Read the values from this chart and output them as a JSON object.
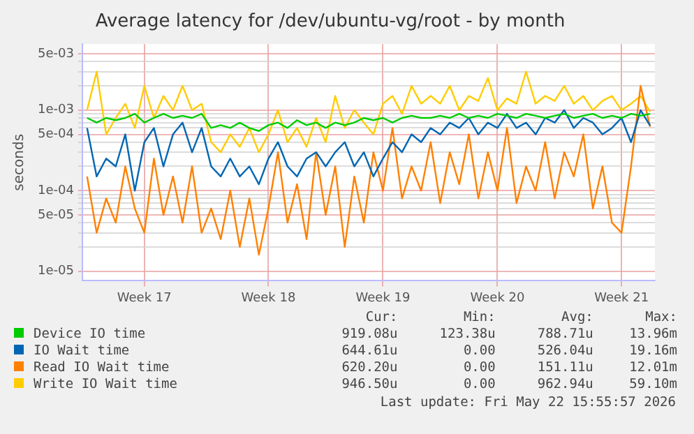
{
  "chart_data": {
    "type": "line",
    "title": "Average latency for /dev/ubuntu-vg/root - by month",
    "ylabel": "seconds",
    "log": "y",
    "grid": true,
    "legend": "bottom",
    "marker": "none",
    "line_style": "solid",
    "categories": [
      null,
      null,
      null,
      null,
      null,
      null,
      "Week 17",
      null,
      null,
      null,
      null,
      null,
      null,
      null,
      null,
      null,
      null,
      null,
      null,
      "Week 18",
      null,
      null,
      null,
      null,
      null,
      null,
      null,
      null,
      null,
      null,
      null,
      "Week 19",
      null,
      null,
      null,
      null,
      null,
      null,
      null,
      null,
      null,
      null,
      null,
      "Week 20",
      null,
      null,
      null,
      null,
      null,
      null,
      null,
      null,
      null,
      null,
      null,
      null,
      "Week 21",
      null,
      null,
      null
    ],
    "ylim": [
      7.6e-06,
      0.0066
    ],
    "yticks": [
      {
        "value": 1e-05,
        "label": "1e-05"
      },
      {
        "value": 2e-05,
        "label": null
      },
      {
        "value": 3e-05,
        "label": null
      },
      {
        "value": 4e-05,
        "label": null
      },
      {
        "value": 5e-05,
        "label": "5e-05"
      },
      {
        "value": 6e-05,
        "label": null
      },
      {
        "value": 7e-05,
        "label": null
      },
      {
        "value": 8e-05,
        "label": null
      },
      {
        "value": 9e-05,
        "label": null
      },
      {
        "value": 0.0001,
        "label": "1e-04"
      },
      {
        "value": 0.0002,
        "label": null
      },
      {
        "value": 0.0003,
        "label": null
      },
      {
        "value": 0.0004,
        "label": null
      },
      {
        "value": 0.0005,
        "label": "5e-04"
      },
      {
        "value": 0.0006,
        "label": null
      },
      {
        "value": 0.0007,
        "label": null
      },
      {
        "value": 0.0008,
        "label": null
      },
      {
        "value": 0.0009,
        "label": null
      },
      {
        "value": 0.001,
        "label": "1e-03"
      },
      {
        "value": 0.002,
        "label": null
      },
      {
        "value": 0.003,
        "label": null
      },
      {
        "value": 0.004,
        "label": null
      },
      {
        "value": 0.005,
        "label": "5e-03"
      }
    ],
    "series": [
      {
        "name": "Device IO time",
        "color": "#00cc00",
        "values": [
          0.0008,
          0.0007,
          0.0008,
          0.00075,
          0.0008,
          0.0009,
          0.0007,
          0.0008,
          0.0009,
          0.0008,
          0.00085,
          0.0008,
          0.0009,
          0.0006,
          0.00065,
          0.0006,
          0.0007,
          0.0006,
          0.00055,
          0.00065,
          0.0007,
          0.0006,
          0.00075,
          0.00065,
          0.0007,
          0.0006,
          0.0007,
          0.00065,
          0.0007,
          0.0008,
          0.00075,
          0.0008,
          0.0007,
          0.0008,
          0.00085,
          0.0008,
          0.0008,
          0.00085,
          0.0008,
          0.0009,
          0.0008,
          0.00085,
          0.0008,
          0.0009,
          0.00085,
          0.0008,
          0.0009,
          0.00085,
          0.0008,
          0.00085,
          0.0009,
          0.0008,
          0.00085,
          0.0009,
          0.0008,
          0.00085,
          0.0008,
          0.0009,
          0.00085,
          0.0009
        ]
      },
      {
        "name": "IO Wait time",
        "color": "#0066b3",
        "values": [
          0.0006,
          0.00015,
          0.00025,
          0.0002,
          0.0005,
          0.0001,
          0.0004,
          0.0006,
          0.0002,
          0.0005,
          0.0007,
          0.0003,
          0.0006,
          0.0002,
          0.00015,
          0.00025,
          0.00015,
          0.0002,
          0.00012,
          0.00025,
          0.0004,
          0.0002,
          0.00015,
          0.00025,
          0.0003,
          0.0002,
          0.0003,
          0.0004,
          0.0002,
          0.0003,
          0.00015,
          0.00025,
          0.0004,
          0.0003,
          0.0005,
          0.0004,
          0.0006,
          0.0005,
          0.0007,
          0.0006,
          0.0008,
          0.0005,
          0.0007,
          0.0006,
          0.0009,
          0.0006,
          0.0007,
          0.0005,
          0.0008,
          0.0007,
          0.001,
          0.0006,
          0.0008,
          0.0007,
          0.0005,
          0.0006,
          0.0008,
          0.0004,
          0.001,
          0.00064
        ]
      },
      {
        "name": "Read IO Wait time",
        "color": "#ff8000",
        "values": [
          0.00015,
          3e-05,
          8e-05,
          4e-05,
          0.0002,
          6e-05,
          3e-05,
          0.00025,
          5e-05,
          0.00015,
          4e-05,
          0.0002,
          3e-05,
          6e-05,
          2.5e-05,
          0.0001,
          2e-05,
          8e-05,
          1.6e-05,
          6e-05,
          0.0003,
          4e-05,
          0.00012,
          2.5e-05,
          0.0003,
          5e-05,
          0.0002,
          2e-05,
          0.00015,
          4e-05,
          0.0003,
          0.0001,
          0.0006,
          8e-05,
          0.0002,
          0.0001,
          0.0004,
          7e-05,
          0.0003,
          0.00012,
          0.0005,
          8e-05,
          0.0003,
          0.0001,
          0.0006,
          7e-05,
          0.0002,
          0.0001,
          0.0004,
          8e-05,
          0.0003,
          0.00015,
          0.0005,
          6e-05,
          0.0002,
          4e-05,
          3e-05,
          0.0002,
          0.002,
          0.00062
        ]
      },
      {
        "name": "Write IO Wait time",
        "color": "#ffcc00",
        "values": [
          0.001,
          0.003,
          0.0005,
          0.0008,
          0.0012,
          0.0006,
          0.002,
          0.0008,
          0.0015,
          0.001,
          0.002,
          0.001,
          0.0012,
          0.0004,
          0.0003,
          0.0005,
          0.00035,
          0.0006,
          0.0003,
          0.0005,
          0.001,
          0.0004,
          0.0006,
          0.00035,
          0.0008,
          0.0004,
          0.0015,
          0.0006,
          0.001,
          0.0007,
          0.0005,
          0.0012,
          0.0015,
          0.0009,
          0.002,
          0.0012,
          0.0015,
          0.0012,
          0.002,
          0.001,
          0.0015,
          0.0013,
          0.0025,
          0.001,
          0.0014,
          0.0012,
          0.003,
          0.0012,
          0.0015,
          0.0013,
          0.002,
          0.0012,
          0.0015,
          0.001,
          0.0013,
          0.0015,
          0.001,
          0.0012,
          0.0015,
          0.00095
        ]
      }
    ],
    "annotations": [
      "Cur:",
      "Min:",
      "Avg:",
      "Max:",
      "919.08u",
      "123.38u",
      "788.71u",
      "13.96m",
      "644.61u",
      "0.00",
      "526.04u",
      "19.16m",
      "620.20u",
      "0.00",
      "151.11u",
      "12.01m",
      "946.50u",
      "0.00",
      "962.94u",
      "59.10m",
      "Last update: Fri May 22 15:55:57 2026"
    ]
  }
}
